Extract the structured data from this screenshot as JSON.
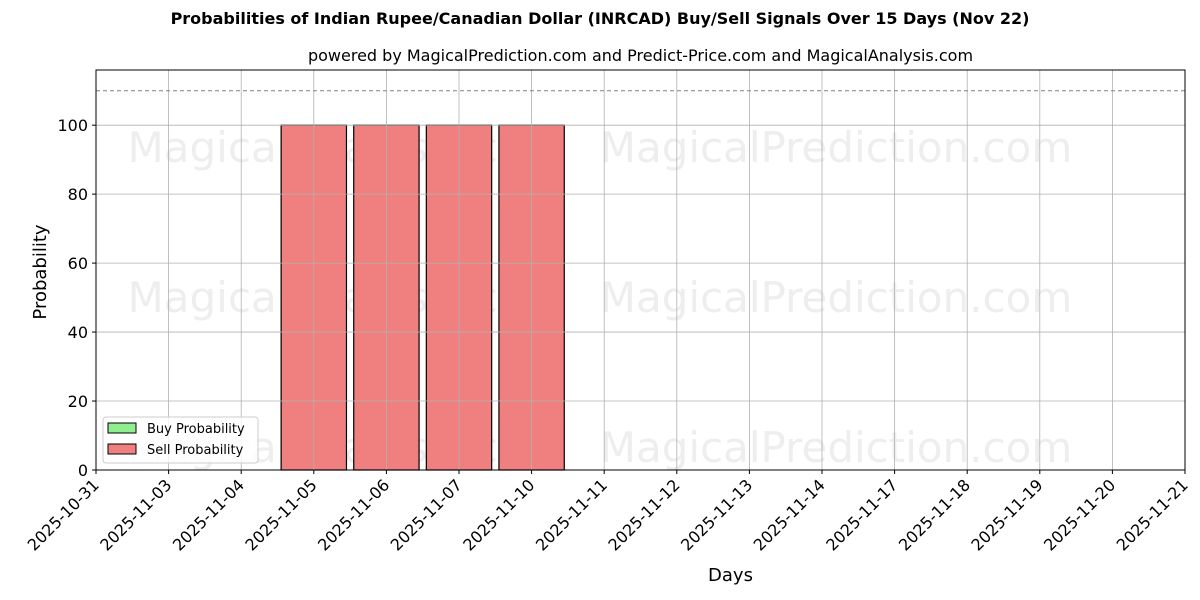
{
  "chart_data": {
    "type": "bar",
    "title": "Probabilities of Indian Rupee/Canadian Dollar (INRCAD) Buy/Sell Signals Over 15 Days (Nov 22)",
    "subtitle": "powered by MagicalPrediction.com and Predict-Price.com and MagicalAnalysis.com",
    "xlabel": "Days",
    "ylabel": "Probability",
    "ylim": [
      0,
      116
    ],
    "yticks": [
      0,
      20,
      40,
      60,
      80,
      100
    ],
    "reference_line": {
      "value": 110,
      "style": "dashed",
      "color": "#808080"
    },
    "grid": true,
    "legend_position": "lower left",
    "categories": [
      "2025-10-31",
      "2025-11-03",
      "2025-11-04",
      "2025-11-05",
      "2025-11-06",
      "2025-11-07",
      "2025-11-10",
      "2025-11-11",
      "2025-11-12",
      "2025-11-13",
      "2025-11-14",
      "2025-11-17",
      "2025-11-18",
      "2025-11-19",
      "2025-11-20",
      "2025-11-21"
    ],
    "series": [
      {
        "name": "Buy Probability",
        "color": "#90ee90",
        "values": [
          0,
          0,
          0,
          0,
          0,
          0,
          0,
          0,
          0,
          0,
          0,
          0,
          0,
          0,
          0,
          0
        ]
      },
      {
        "name": "Sell Probability",
        "color": "#f08080",
        "values": [
          0,
          0,
          0,
          100,
          100,
          100,
          100,
          0,
          0,
          0,
          0,
          0,
          0,
          0,
          0,
          0
        ]
      }
    ],
    "watermarks": [
      "MagicalAnalysis.com",
      "MagicalPrediction.com"
    ]
  }
}
